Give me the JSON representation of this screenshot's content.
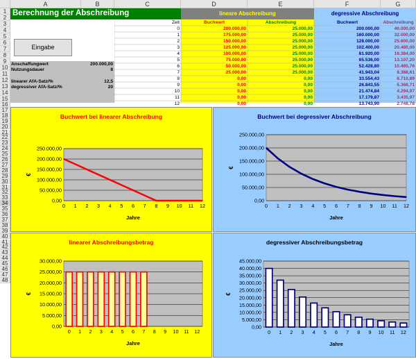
{
  "sheet": {
    "columns": [
      "A",
      "B",
      "C",
      "D",
      "E",
      "F",
      "G"
    ],
    "rows": [
      "1",
      "2",
      "3",
      "4",
      "5",
      "6",
      "7",
      "8",
      "9",
      "10",
      "11",
      "12",
      "13",
      "14",
      "15",
      "16",
      "17",
      "18",
      "19",
      "20",
      "21",
      "22",
      "23",
      "24",
      "25",
      "26",
      "27",
      "28",
      "29",
      "30",
      "31",
      "32",
      "33",
      "34",
      "35",
      "36",
      "37",
      "38",
      "39",
      "40",
      "41",
      "42",
      "43",
      "44",
      "45",
      "46",
      "47",
      "48"
    ],
    "selected_row": "34"
  },
  "title": "Berechnung der Abschreibung",
  "button": {
    "label": "Eingabe"
  },
  "inputs": [
    {
      "label": "Anschaffungwert",
      "value": "200.000,00"
    },
    {
      "label": "Nutzungsdauer",
      "value": "8"
    },
    {
      "label": "linearer AfA-Satz/%",
      "value": "12,5"
    },
    {
      "label": "degressiver AfA-Satz/%",
      "value": "20"
    }
  ],
  "table": {
    "linear_header": "lineare Abschreibung",
    "degressive_header": "degressive Abschreibung",
    "zeit_label": "Zeit",
    "buchwert_label": "Buchwert",
    "abschreibung_label": "Abschreibung",
    "rows": [
      {
        "zeit": "0",
        "lin_bw": "200.000,00",
        "lin_ab": "25.000,00",
        "deg_bw": "200.000,00",
        "deg_ab": "40.000,00"
      },
      {
        "zeit": "1",
        "lin_bw": "175.000,00",
        "lin_ab": "25.000,00",
        "deg_bw": "160.000,00",
        "deg_ab": "32.000,00"
      },
      {
        "zeit": "2",
        "lin_bw": "150.000,00",
        "lin_ab": "25.000,00",
        "deg_bw": "128.000,00",
        "deg_ab": "25.600,00"
      },
      {
        "zeit": "3",
        "lin_bw": "125.000,00",
        "lin_ab": "25.000,00",
        "deg_bw": "102.400,00",
        "deg_ab": "20.480,00"
      },
      {
        "zeit": "4",
        "lin_bw": "100.000,00",
        "lin_ab": "25.000,00",
        "deg_bw": "81.920,00",
        "deg_ab": "16.384,00"
      },
      {
        "zeit": "5",
        "lin_bw": "75.000,00",
        "lin_ab": "25.000,00",
        "deg_bw": "65.536,00",
        "deg_ab": "13.107,20"
      },
      {
        "zeit": "6",
        "lin_bw": "50.000,00",
        "lin_ab": "25.000,00",
        "deg_bw": "52.428,80",
        "deg_ab": "10.485,76"
      },
      {
        "zeit": "7",
        "lin_bw": "25.000,00",
        "lin_ab": "25.000,00",
        "deg_bw": "41.943,04",
        "deg_ab": "8.388,61"
      },
      {
        "zeit": "8",
        "lin_bw": "0,00",
        "lin_ab": "0,00",
        "deg_bw": "33.554,43",
        "deg_ab": "6.710,89"
      },
      {
        "zeit": "9",
        "lin_bw": "0,00",
        "lin_ab": "0,00",
        "deg_bw": "26.843,55",
        "deg_ab": "5.368,71"
      },
      {
        "zeit": "10",
        "lin_bw": "0,00",
        "lin_ab": "0,00",
        "deg_bw": "21.474,84",
        "deg_ab": "4.294,97"
      },
      {
        "zeit": "11",
        "lin_bw": "0,00",
        "lin_ab": "0,00",
        "deg_bw": "17.179,87",
        "deg_ab": "3.435,97"
      },
      {
        "zeit": "12",
        "lin_bw": "0,00",
        "lin_ab": "0,00",
        "deg_bw": "13.743,90",
        "deg_ab": "2.748,78"
      }
    ]
  },
  "colors": {
    "title_bg": "#008000",
    "linear_header_bg": "#808080",
    "linear_header_text": "#ffff00",
    "degressive_header_bg": "#99ccff",
    "degressive_header_text": "#000080",
    "linear_cells_bg": "#ffff00",
    "linear_buchwert_text": "#ff0000",
    "linear_abschreibung_text": "#008000",
    "degressive_cells_bg": "#99ccff",
    "degressive_buchwert_text": "#000080",
    "degressive_abschreibung_text": "#993366",
    "input_bg": "#c0c0c0"
  },
  "chart_data": [
    {
      "type": "line",
      "title": "Buchwert bei linearer Abschreibung",
      "xlabel": "Jahre",
      "ylabel": "€",
      "x": [
        0,
        1,
        2,
        3,
        4,
        5,
        6,
        7,
        8,
        9,
        10,
        11,
        12
      ],
      "values": [
        200000,
        175000,
        150000,
        125000,
        100000,
        75000,
        50000,
        25000,
        0,
        0,
        0,
        0,
        0
      ],
      "ylim": [
        0,
        250000
      ],
      "yticks": [
        "0,00",
        "50.000,00",
        "100.000,00",
        "150.000,00",
        "200.000,00",
        "250.000,00"
      ],
      "series_color": "#ff0000",
      "bg": "#ffff00",
      "title_color": "#ff0000"
    },
    {
      "type": "line",
      "title": "Buchwert bei degressiver Abschreibung",
      "xlabel": "Jahre",
      "ylabel": "€",
      "x": [
        0,
        1,
        2,
        3,
        4,
        5,
        6,
        7,
        8,
        9,
        10,
        11,
        12
      ],
      "values": [
        200000,
        160000,
        128000,
        102400,
        81920,
        65536,
        52428.8,
        41943.04,
        33554.43,
        26843.55,
        21474.84,
        17179.87,
        13743.9
      ],
      "ylim": [
        0,
        250000
      ],
      "yticks": [
        "0,00",
        "50.000,00",
        "100.000,00",
        "150.000,00",
        "200.000,00",
        "250.000,00"
      ],
      "series_color": "#000080",
      "bg": "#99ccff",
      "title_color": "#000080"
    },
    {
      "type": "bar",
      "title": "linearer Abschreibungsbetrag",
      "xlabel": "Jahre",
      "ylabel": "€",
      "x": [
        0,
        1,
        2,
        3,
        4,
        5,
        6,
        7,
        8,
        9,
        10,
        11,
        12
      ],
      "values": [
        25000,
        25000,
        25000,
        25000,
        25000,
        25000,
        25000,
        25000,
        0,
        0,
        0,
        0,
        0
      ],
      "ylim": [
        0,
        30000
      ],
      "yticks": [
        "0,00",
        "5.000,00",
        "10.000,00",
        "15.000,00",
        "20.000,00",
        "25.000,00",
        "30.000,00"
      ],
      "series_color": "#ff0000",
      "bar_fill": "#ffff99",
      "bg": "#ffff00",
      "title_color": "#ff0000"
    },
    {
      "type": "bar",
      "title": "degressiver Abschreibungsbetrag",
      "xlabel": "Jahre",
      "ylabel": "€",
      "x": [
        0,
        1,
        2,
        3,
        4,
        5,
        6,
        7,
        8,
        9,
        10,
        11,
        12
      ],
      "values": [
        40000,
        32000,
        25600,
        20480,
        16384,
        13107.2,
        10485.76,
        8388.61,
        6710.89,
        5368.71,
        4294.97,
        3435.97,
        2748.78
      ],
      "ylim": [
        0,
        45000
      ],
      "yticks": [
        "0,00",
        "5.000,00",
        "10.000,00",
        "15.000,00",
        "20.000,00",
        "25.000,00",
        "30.000,00",
        "35.000,00",
        "40.000,00",
        "45.000,00"
      ],
      "series_color": "#000080",
      "bar_fill": "#ffffff",
      "bg": "#99ccff",
      "title_color": "#000000"
    }
  ]
}
